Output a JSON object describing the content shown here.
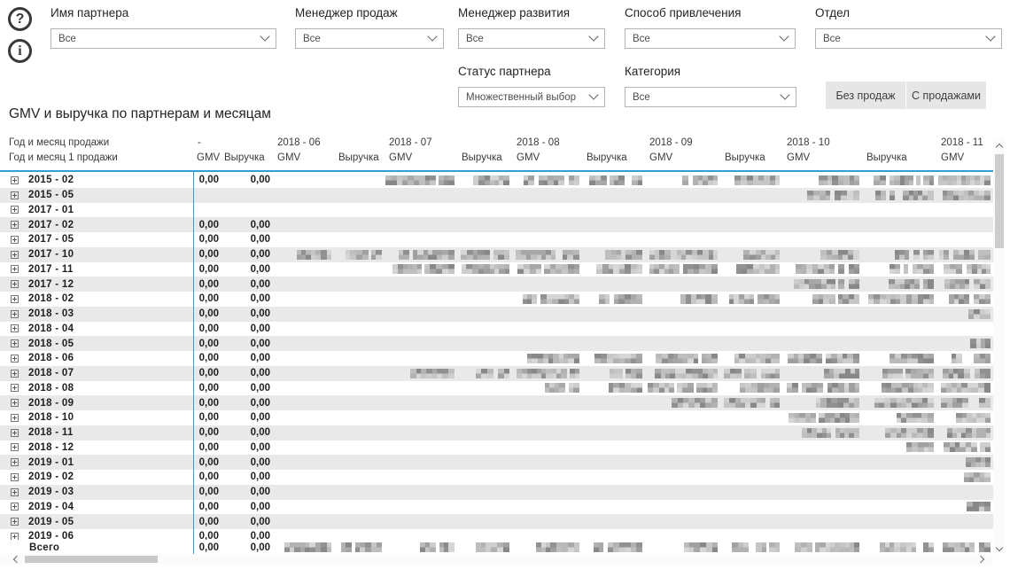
{
  "icons": {
    "help": "?",
    "info": "i"
  },
  "filters": [
    {
      "label": "Имя партнера",
      "value": "Все"
    },
    {
      "label": "Менеджер продаж",
      "value": "Все"
    },
    {
      "label": "Менеджер развития",
      "value": "Все"
    },
    {
      "label": "Способ привлечения",
      "value": "Все"
    },
    {
      "label": "Отдел",
      "value": "Все"
    },
    {
      "label": "Статус партнера",
      "value": "Множественный выбор"
    },
    {
      "label": "Категория",
      "value": "Все"
    }
  ],
  "buttons": [
    {
      "label": "Без продаж"
    },
    {
      "label": "С продажами"
    }
  ],
  "matrix": {
    "title": "GMV и выручка по партнерам и месяцам",
    "row_header_line1": "Год и месяц продажи",
    "row_header_line2": "Год и месяц 1 продажи",
    "col_groups": [
      {
        "label": "-",
        "cols": [
          "GMV",
          "Выручка"
        ]
      },
      {
        "label": "2018 - 06",
        "cols": [
          "GMV",
          "Выручка"
        ]
      },
      {
        "label": "2018 - 07",
        "cols": [
          "GMV",
          "Выручка"
        ]
      },
      {
        "label": "2018 - 08",
        "cols": [
          "GMV",
          "Выручка"
        ]
      },
      {
        "label": "2018 - 09",
        "cols": [
          "GMV",
          "Выручка"
        ]
      },
      {
        "label": "2018 - 10",
        "cols": [
          "GMV",
          "Выручка"
        ]
      },
      {
        "label": "2018 - 11",
        "cols": [
          "GMV"
        ]
      }
    ],
    "redacted_marker": "pixelated (unreadable)",
    "rows": [
      {
        "label": "2015 - 02",
        "cells": [
          "0,00",
          "0,00",
          "",
          "",
          "x",
          "x",
          "x",
          "x",
          "x",
          "x",
          "x",
          "x",
          "x"
        ]
      },
      {
        "label": "2015 - 05",
        "cells": [
          "",
          "",
          "",
          "",
          "",
          "",
          "",
          "",
          "",
          "",
          "x",
          "x",
          "x"
        ]
      },
      {
        "label": "2017 - 01",
        "cells": [
          "",
          "",
          "",
          "",
          "",
          "",
          "",
          "",
          "",
          "",
          "",
          "",
          ""
        ]
      },
      {
        "label": "2017 - 02",
        "cells": [
          "0,00",
          "0,00",
          "",
          "",
          "",
          "",
          "",
          "",
          "",
          "",
          "",
          "",
          ""
        ]
      },
      {
        "label": "2017 - 05",
        "cells": [
          "0,00",
          "0,00",
          "",
          "",
          "",
          "",
          "",
          "",
          "",
          "",
          "",
          "",
          ""
        ]
      },
      {
        "label": "2017 - 10",
        "cells": [
          "0,00",
          "0,00",
          "x",
          "x",
          "x",
          "x",
          "x",
          "x",
          "x",
          "x",
          "x",
          "x",
          "x"
        ]
      },
      {
        "label": "2017 - 11",
        "cells": [
          "0,00",
          "0,00",
          "",
          "",
          "x",
          "x",
          "x",
          "x",
          "x",
          "x",
          "x",
          "x",
          "x"
        ]
      },
      {
        "label": "2017 - 12",
        "cells": [
          "0,00",
          "0,00",
          "",
          "",
          "",
          "",
          "",
          "",
          "",
          "",
          "x",
          "x",
          "x"
        ]
      },
      {
        "label": "2018 - 02",
        "cells": [
          "0,00",
          "0,00",
          "",
          "",
          "",
          "",
          "x",
          "x",
          "x",
          "x",
          "x",
          "x",
          "x"
        ]
      },
      {
        "label": "2018 - 03",
        "cells": [
          "0,00",
          "0,00",
          "",
          "",
          "",
          "",
          "",
          "",
          "",
          "",
          "",
          "",
          "xs"
        ]
      },
      {
        "label": "2018 - 04",
        "cells": [
          "0,00",
          "0,00",
          "",
          "",
          "",
          "",
          "",
          "",
          "",
          "",
          "",
          "",
          ""
        ]
      },
      {
        "label": "2018 - 05",
        "cells": [
          "0,00",
          "0,00",
          "",
          "",
          "",
          "",
          "",
          "",
          "",
          "",
          "",
          "",
          "xs"
        ]
      },
      {
        "label": "2018 - 06",
        "cells": [
          "0,00",
          "0,00",
          "",
          "",
          "",
          "",
          "x",
          "x",
          "x",
          "x",
          "x",
          "x",
          "x"
        ]
      },
      {
        "label": "2018 - 07",
        "cells": [
          "0,00",
          "0,00",
          "",
          "",
          "x",
          "x",
          "x",
          "x",
          "x",
          "x",
          "x",
          "x",
          "x"
        ]
      },
      {
        "label": "2018 - 08",
        "cells": [
          "0,00",
          "0,00",
          "",
          "",
          "",
          "",
          "x",
          "x",
          "x",
          "x",
          "x",
          "x",
          "x"
        ]
      },
      {
        "label": "2018 - 09",
        "cells": [
          "0,00",
          "0,00",
          "",
          "",
          "",
          "",
          "",
          "",
          "x",
          "x",
          "x",
          "x",
          "x"
        ]
      },
      {
        "label": "2018 - 10",
        "cells": [
          "0,00",
          "0,00",
          "",
          "",
          "",
          "",
          "",
          "",
          "",
          "",
          "x",
          "x",
          "x"
        ]
      },
      {
        "label": "2018 - 11",
        "cells": [
          "0,00",
          "0,00",
          "",
          "",
          "",
          "",
          "",
          "",
          "",
          "",
          "x",
          "x",
          "x"
        ]
      },
      {
        "label": "2018 - 12",
        "cells": [
          "0,00",
          "0,00",
          "",
          "",
          "",
          "",
          "",
          "",
          "",
          "",
          "",
          "xs",
          "x"
        ]
      },
      {
        "label": "2019 - 01",
        "cells": [
          "0,00",
          "0,00",
          "",
          "",
          "",
          "",
          "",
          "",
          "",
          "",
          "",
          "",
          "xs"
        ]
      },
      {
        "label": "2019 - 02",
        "cells": [
          "0,00",
          "0,00",
          "",
          "",
          "",
          "",
          "",
          "",
          "",
          "",
          "",
          "",
          "xs"
        ]
      },
      {
        "label": "2019 - 03",
        "cells": [
          "0,00",
          "0,00",
          "",
          "",
          "",
          "",
          "",
          "",
          "",
          "",
          "",
          "",
          ""
        ]
      },
      {
        "label": "2019 - 04",
        "cells": [
          "0,00",
          "0,00",
          "",
          "",
          "",
          "",
          "",
          "",
          "",
          "",
          "",
          "",
          "xs"
        ]
      },
      {
        "label": "2019 - 05",
        "cells": [
          "0,00",
          "0,00",
          "",
          "",
          "",
          "",
          "",
          "",
          "",
          "",
          "",
          "",
          ""
        ]
      },
      {
        "label": "2019 - 06",
        "cells": [
          "0,00",
          "0,00",
          "",
          "",
          "",
          "",
          "",
          "",
          "",
          "",
          "",
          "",
          ""
        ]
      }
    ],
    "total": {
      "label": "Всего",
      "cells": [
        "0,00",
        "0,00",
        "x",
        "x",
        "x",
        "x",
        "x",
        "x",
        "x",
        "x",
        "x",
        "x",
        "x"
      ]
    }
  },
  "colors": {
    "accent_line": "#2e9fdb",
    "row_alt": "#e9e9e9",
    "button_bg": "#e6e6e6",
    "scroll_thumb": "#cdcdcd"
  }
}
